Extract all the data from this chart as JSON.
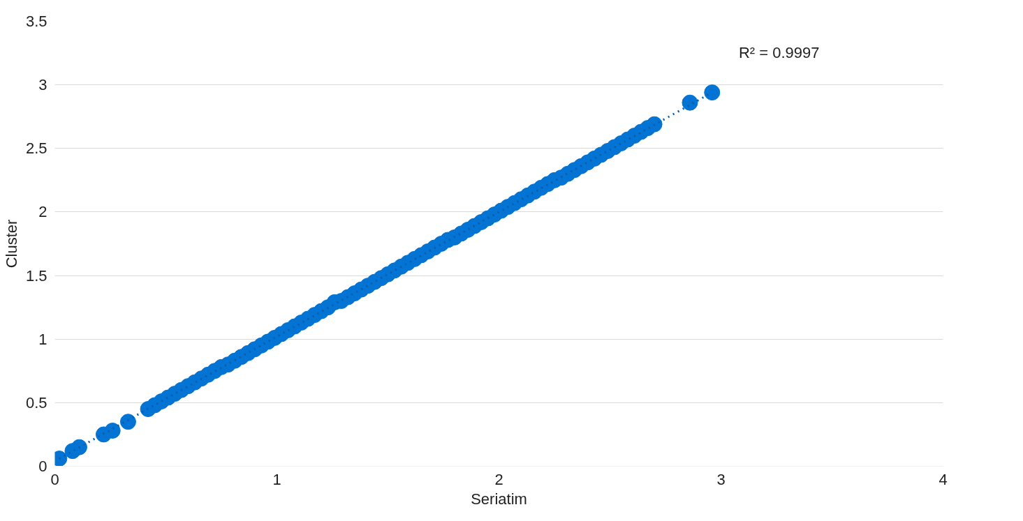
{
  "chart_data": {
    "type": "scatter",
    "xlabel": "Seriatim",
    "ylabel": "Cluster",
    "annotations": [
      "R² = 0.9997"
    ],
    "xlim": [
      0,
      4
    ],
    "ylim": [
      0,
      3.5
    ],
    "xticks": [
      0,
      1,
      2,
      3,
      4
    ],
    "yticks": [
      0,
      0.5,
      1,
      1.5,
      2,
      2.5,
      3,
      3.5
    ],
    "grid": "y",
    "series": [
      {
        "color": "#0474d4",
        "marker": "circle",
        "x": [
          0.45,
          0.51,
          0.57,
          0.63,
          0.69,
          0.75,
          0.81,
          0.87,
          0.93,
          0.99,
          1.05,
          1.11,
          1.17,
          1.23,
          1.29,
          1.35,
          1.41,
          1.47,
          1.53,
          1.59,
          1.65,
          1.71,
          1.77,
          1.83,
          1.89,
          1.95,
          2.01,
          2.07,
          2.13,
          2.19,
          2.25,
          2.31,
          2.37,
          2.43,
          2.49,
          2.55,
          2.61,
          2.67,
          0.02,
          0.08,
          0.11,
          0.22,
          0.26,
          0.33,
          0.42,
          0.48,
          0.54,
          0.6,
          0.66,
          0.72,
          0.78,
          0.84,
          0.9,
          0.96,
          1.02,
          1.08,
          1.14,
          1.2,
          1.26,
          1.32,
          1.38,
          1.44,
          1.5,
          1.56,
          1.62,
          1.68,
          1.74,
          1.8,
          1.86,
          1.92,
          1.98,
          2.04,
          2.1,
          2.16,
          2.22,
          2.28,
          2.34,
          2.4,
          2.46,
          2.52,
          2.58,
          2.64,
          2.7,
          2.86,
          2.96
        ],
        "values": [
          0.48,
          0.54,
          0.6,
          0.66,
          0.72,
          0.78,
          0.83,
          0.89,
          0.95,
          1.01,
          1.07,
          1.13,
          1.19,
          1.25,
          1.3,
          1.36,
          1.42,
          1.48,
          1.54,
          1.6,
          1.66,
          1.72,
          1.78,
          1.83,
          1.89,
          1.95,
          2.01,
          2.07,
          2.13,
          2.19,
          2.25,
          2.3,
          2.36,
          2.42,
          2.48,
          2.54,
          2.6,
          2.66,
          0.06,
          0.12,
          0.15,
          0.25,
          0.28,
          0.35,
          0.45,
          0.51,
          0.57,
          0.63,
          0.69,
          0.75,
          0.8,
          0.86,
          0.92,
          0.98,
          1.04,
          1.1,
          1.16,
          1.22,
          1.29,
          1.33,
          1.39,
          1.45,
          1.51,
          1.57,
          1.63,
          1.69,
          1.75,
          1.8,
          1.86,
          1.92,
          1.98,
          2.04,
          2.1,
          2.16,
          2.22,
          2.27,
          2.33,
          2.39,
          2.45,
          2.51,
          2.57,
          2.63,
          2.69,
          2.86,
          2.94
        ]
      },
      {
        "type": "line",
        "color": "#0a5aa8",
        "line_style": "dotted",
        "x": [
          0.02,
          2.96
        ],
        "values": [
          0.06,
          2.94
        ]
      }
    ]
  }
}
